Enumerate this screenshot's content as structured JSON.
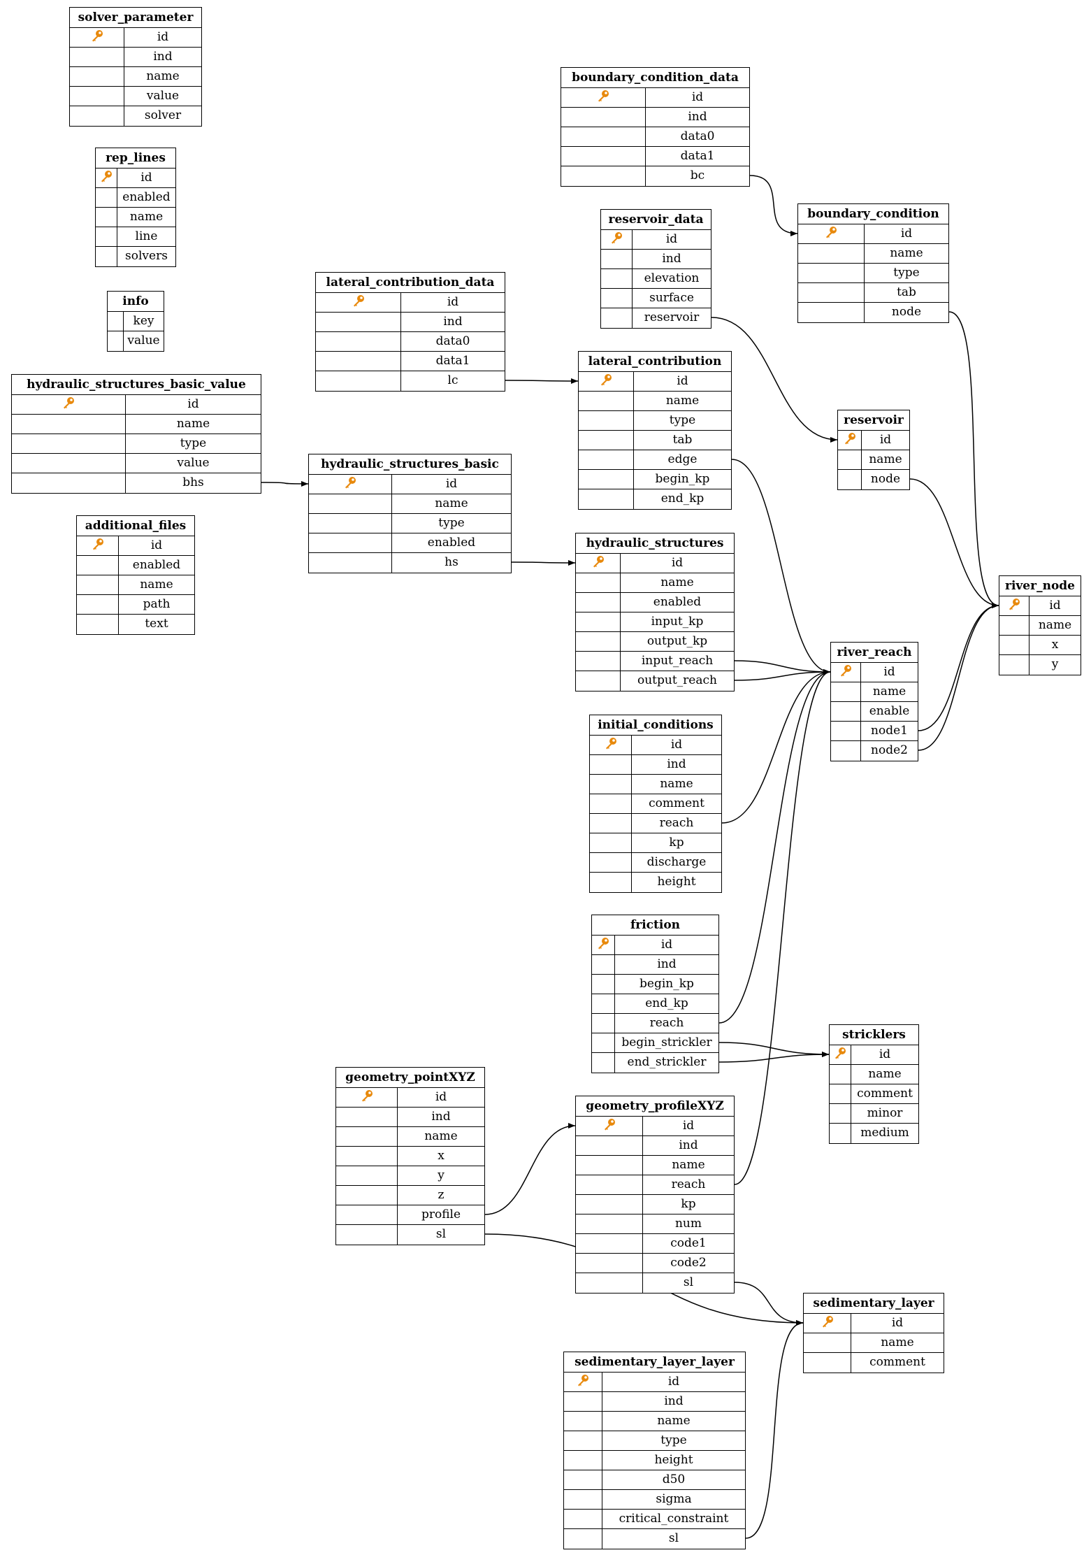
{
  "colors": {
    "key_icon": "#e8890c",
    "line": "#000000"
  },
  "tables": [
    {
      "name": "solver_parameter",
      "columns": [
        {
          "name": "id",
          "key": true
        },
        {
          "name": "ind"
        },
        {
          "name": "name"
        },
        {
          "name": "value"
        },
        {
          "name": "solver"
        }
      ]
    },
    {
      "name": "rep_lines",
      "columns": [
        {
          "name": "id",
          "key": true
        },
        {
          "name": "enabled"
        },
        {
          "name": "name"
        },
        {
          "name": "line"
        },
        {
          "name": "solvers"
        }
      ]
    },
    {
      "name": "info",
      "columns": [
        {
          "name": "key"
        },
        {
          "name": "value"
        }
      ]
    },
    {
      "name": "hydraulic_structures_basic_value",
      "columns": [
        {
          "name": "id",
          "key": true
        },
        {
          "name": "name"
        },
        {
          "name": "type"
        },
        {
          "name": "value"
        },
        {
          "name": "bhs"
        }
      ]
    },
    {
      "name": "additional_files",
      "columns": [
        {
          "name": "id",
          "key": true
        },
        {
          "name": "enabled"
        },
        {
          "name": "name"
        },
        {
          "name": "path"
        },
        {
          "name": "text"
        }
      ]
    },
    {
      "name": "lateral_contribution_data",
      "columns": [
        {
          "name": "id",
          "key": true
        },
        {
          "name": "ind"
        },
        {
          "name": "data0"
        },
        {
          "name": "data1"
        },
        {
          "name": "lc"
        }
      ]
    },
    {
      "name": "hydraulic_structures_basic",
      "columns": [
        {
          "name": "id",
          "key": true
        },
        {
          "name": "name"
        },
        {
          "name": "type"
        },
        {
          "name": "enabled"
        },
        {
          "name": "hs"
        }
      ]
    },
    {
      "name": "boundary_condition_data",
      "columns": [
        {
          "name": "id",
          "key": true
        },
        {
          "name": "ind"
        },
        {
          "name": "data0"
        },
        {
          "name": "data1"
        },
        {
          "name": "bc"
        }
      ]
    },
    {
      "name": "reservoir_data",
      "columns": [
        {
          "name": "id",
          "key": true
        },
        {
          "name": "ind"
        },
        {
          "name": "elevation"
        },
        {
          "name": "surface"
        },
        {
          "name": "reservoir"
        }
      ]
    },
    {
      "name": "boundary_condition",
      "columns": [
        {
          "name": "id",
          "key": true
        },
        {
          "name": "name"
        },
        {
          "name": "type"
        },
        {
          "name": "tab"
        },
        {
          "name": "node"
        }
      ]
    },
    {
      "name": "lateral_contribution",
      "columns": [
        {
          "name": "id",
          "key": true
        },
        {
          "name": "name"
        },
        {
          "name": "type"
        },
        {
          "name": "tab"
        },
        {
          "name": "edge"
        },
        {
          "name": "begin_kp"
        },
        {
          "name": "end_kp"
        }
      ]
    },
    {
      "name": "reservoir",
      "columns": [
        {
          "name": "id",
          "key": true
        },
        {
          "name": "name"
        },
        {
          "name": "node"
        }
      ]
    },
    {
      "name": "hydraulic_structures",
      "columns": [
        {
          "name": "id",
          "key": true
        },
        {
          "name": "name"
        },
        {
          "name": "enabled"
        },
        {
          "name": "input_kp"
        },
        {
          "name": "output_kp"
        },
        {
          "name": "input_reach"
        },
        {
          "name": "output_reach"
        }
      ]
    },
    {
      "name": "river_node",
      "columns": [
        {
          "name": "id",
          "key": true
        },
        {
          "name": "name"
        },
        {
          "name": "x"
        },
        {
          "name": "y"
        }
      ]
    },
    {
      "name": "river_reach",
      "columns": [
        {
          "name": "id",
          "key": true
        },
        {
          "name": "name"
        },
        {
          "name": "enable"
        },
        {
          "name": "node1"
        },
        {
          "name": "node2"
        }
      ]
    },
    {
      "name": "initial_conditions",
      "columns": [
        {
          "name": "id",
          "key": true
        },
        {
          "name": "ind"
        },
        {
          "name": "name"
        },
        {
          "name": "comment"
        },
        {
          "name": "reach"
        },
        {
          "name": "kp"
        },
        {
          "name": "discharge"
        },
        {
          "name": "height"
        }
      ]
    },
    {
      "name": "friction",
      "columns": [
        {
          "name": "id",
          "key": true
        },
        {
          "name": "ind"
        },
        {
          "name": "begin_kp"
        },
        {
          "name": "end_kp"
        },
        {
          "name": "reach"
        },
        {
          "name": "begin_strickler"
        },
        {
          "name": "end_strickler"
        }
      ]
    },
    {
      "name": "stricklers",
      "columns": [
        {
          "name": "id",
          "key": true
        },
        {
          "name": "name"
        },
        {
          "name": "comment"
        },
        {
          "name": "minor"
        },
        {
          "name": "medium"
        }
      ]
    },
    {
      "name": "geometry_pointXYZ",
      "columns": [
        {
          "name": "id",
          "key": true
        },
        {
          "name": "ind"
        },
        {
          "name": "name"
        },
        {
          "name": "x"
        },
        {
          "name": "y"
        },
        {
          "name": "z"
        },
        {
          "name": "profile"
        },
        {
          "name": "sl"
        }
      ]
    },
    {
      "name": "geometry_profileXYZ",
      "columns": [
        {
          "name": "id",
          "key": true
        },
        {
          "name": "ind"
        },
        {
          "name": "name"
        },
        {
          "name": "reach"
        },
        {
          "name": "kp"
        },
        {
          "name": "num"
        },
        {
          "name": "code1"
        },
        {
          "name": "code2"
        },
        {
          "name": "sl"
        }
      ]
    },
    {
      "name": "sedimentary_layer",
      "columns": [
        {
          "name": "id",
          "key": true
        },
        {
          "name": "name"
        },
        {
          "name": "comment"
        }
      ]
    },
    {
      "name": "sedimentary_layer_layer",
      "columns": [
        {
          "name": "id",
          "key": true
        },
        {
          "name": "ind"
        },
        {
          "name": "name"
        },
        {
          "name": "type"
        },
        {
          "name": "height"
        },
        {
          "name": "d50"
        },
        {
          "name": "sigma"
        },
        {
          "name": "critical_constraint"
        },
        {
          "name": "sl"
        }
      ]
    }
  ],
  "relations": [
    {
      "from": "boundary_condition_data",
      "field": "bc",
      "to": "boundary_condition"
    },
    {
      "from": "boundary_condition",
      "field": "node",
      "to": "river_node"
    },
    {
      "from": "reservoir_data",
      "field": "reservoir",
      "to": "reservoir"
    },
    {
      "from": "reservoir",
      "field": "node",
      "to": "river_node"
    },
    {
      "from": "lateral_contribution_data",
      "field": "lc",
      "to": "lateral_contribution"
    },
    {
      "from": "lateral_contribution",
      "field": "edge",
      "to": "river_reach"
    },
    {
      "from": "hydraulic_structures_basic_value",
      "field": "bhs",
      "to": "hydraulic_structures_basic"
    },
    {
      "from": "hydraulic_structures_basic",
      "field": "hs",
      "to": "hydraulic_structures"
    },
    {
      "from": "hydraulic_structures",
      "field": "input_reach",
      "to": "river_reach"
    },
    {
      "from": "hydraulic_structures",
      "field": "output_reach",
      "to": "river_reach"
    },
    {
      "from": "river_reach",
      "field": "node1",
      "to": "river_node"
    },
    {
      "from": "river_reach",
      "field": "node2",
      "to": "river_node"
    },
    {
      "from": "initial_conditions",
      "field": "reach",
      "to": "river_reach"
    },
    {
      "from": "friction",
      "field": "reach",
      "to": "river_reach"
    },
    {
      "from": "friction",
      "field": "begin_strickler",
      "to": "stricklers"
    },
    {
      "from": "friction",
      "field": "end_strickler",
      "to": "stricklers"
    },
    {
      "from": "geometry_pointXYZ",
      "field": "profile",
      "to": "geometry_profileXYZ"
    },
    {
      "from": "geometry_pointXYZ",
      "field": "sl",
      "to": "sedimentary_layer"
    },
    {
      "from": "geometry_profileXYZ",
      "field": "reach",
      "to": "river_reach"
    },
    {
      "from": "geometry_profileXYZ",
      "field": "sl",
      "to": "sedimentary_layer"
    },
    {
      "from": "sedimentary_layer_layer",
      "field": "sl",
      "to": "sedimentary_layer"
    }
  ]
}
